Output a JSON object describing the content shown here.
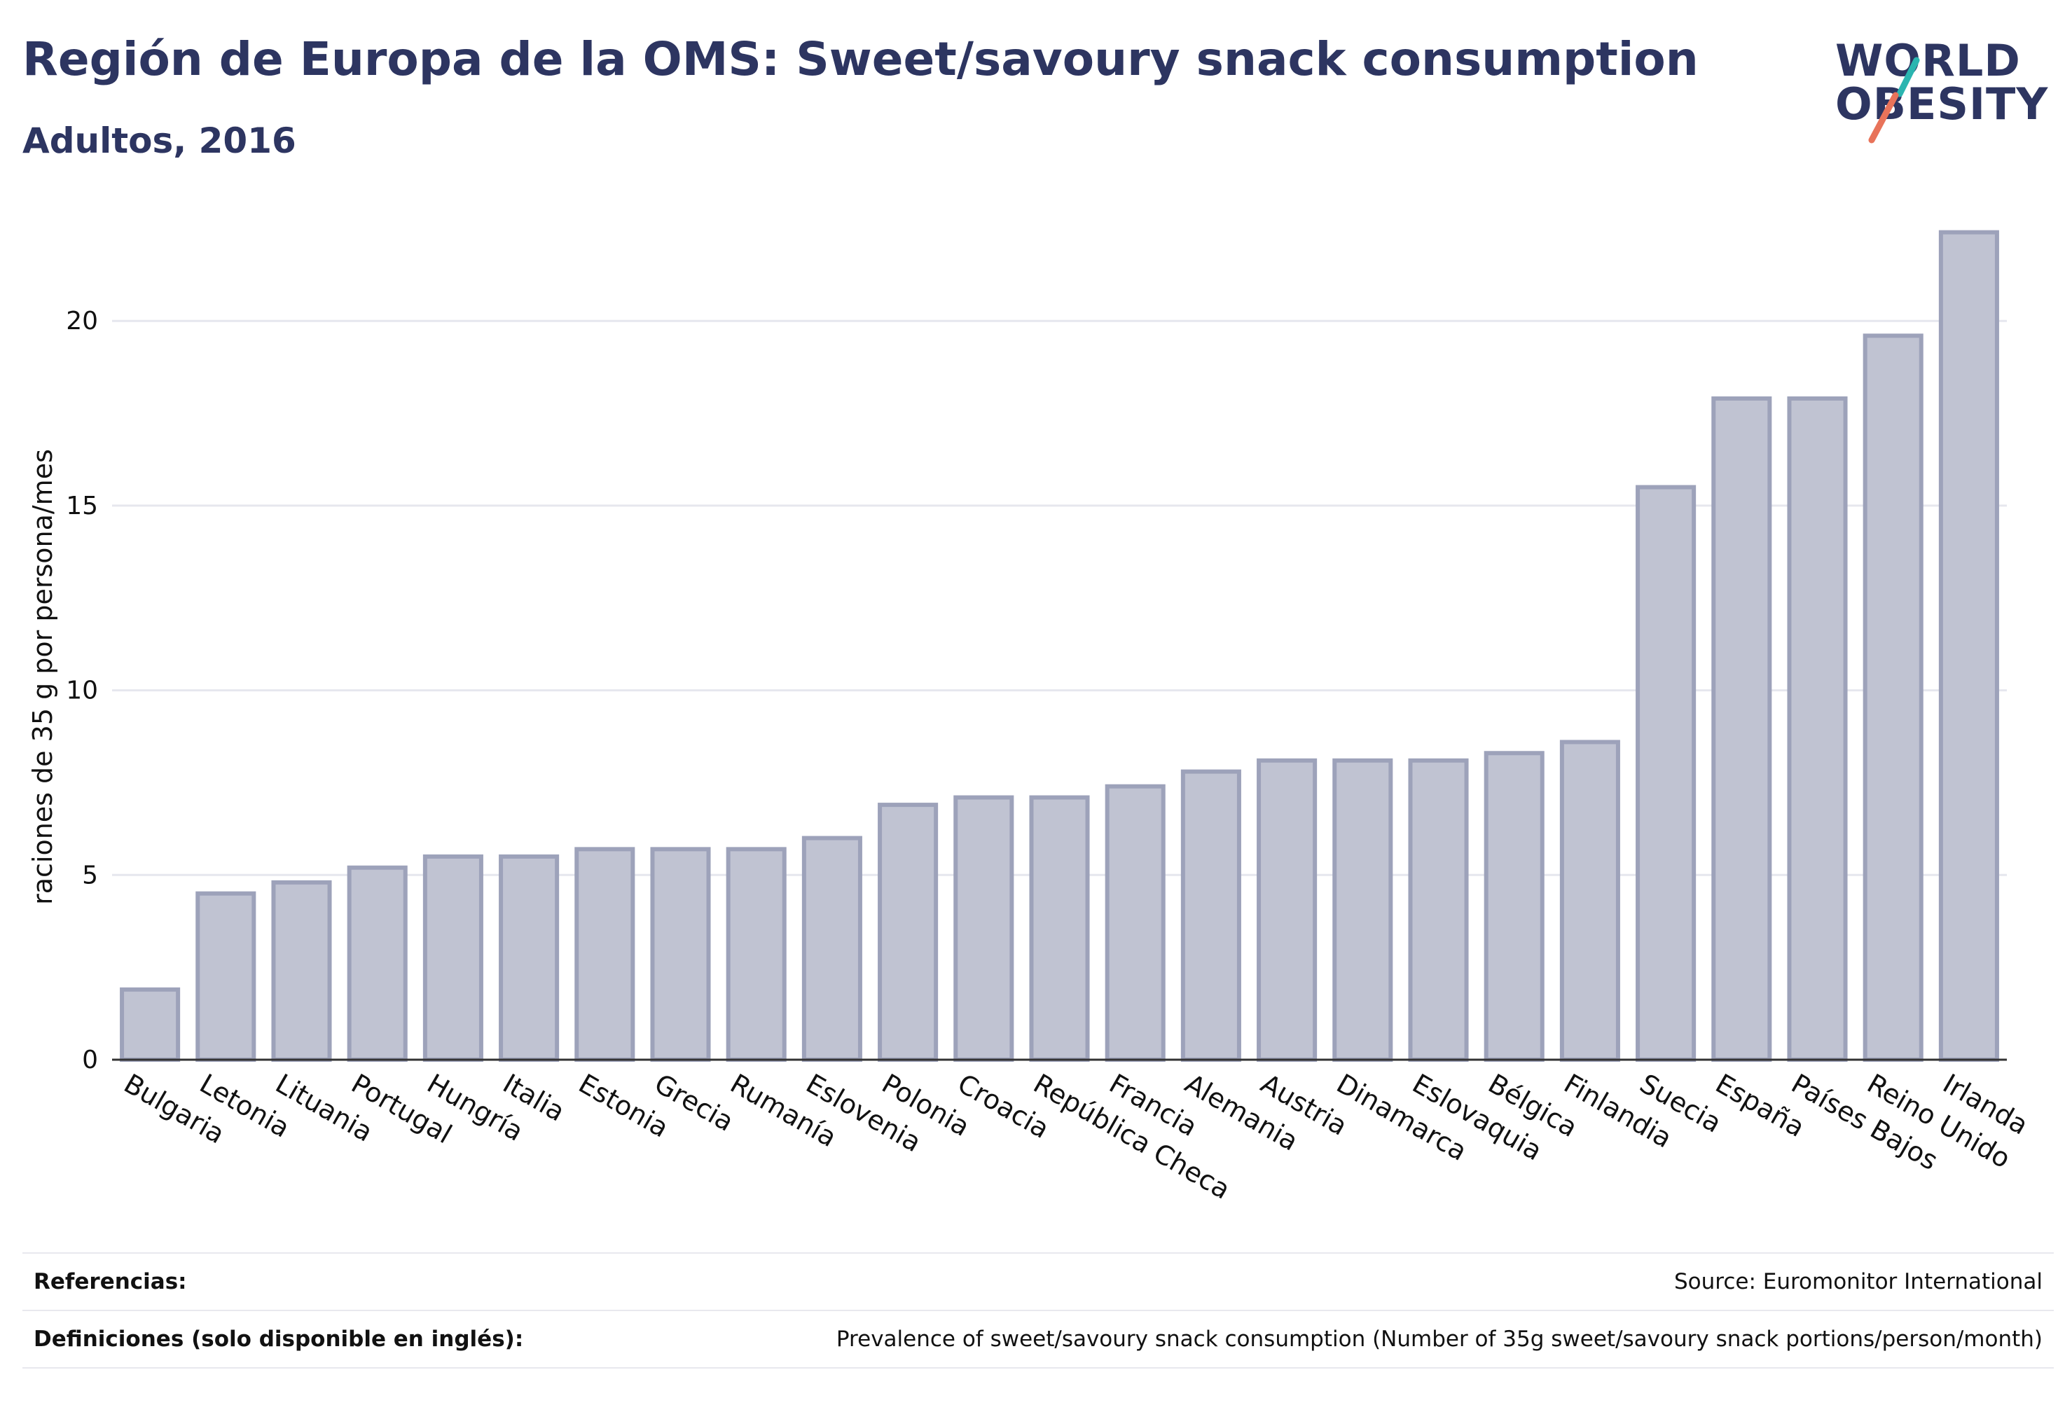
{
  "header": {
    "title": "Región de Europa de la OMS: Sweet/savoury snack consumption",
    "subtitle": "Adultos, 2016"
  },
  "logo": {
    "line1": "WORLD",
    "line2": "OBESITY",
    "colors": {
      "text": "#2d3561",
      "slash_top": "#2bb5b0",
      "slash_bottom": "#e8735a"
    }
  },
  "chart_data": {
    "type": "bar",
    "ylabel": "raciones de 35 g por persona/mes",
    "ylim": [
      0,
      23
    ],
    "yticks": [
      0,
      5,
      10,
      15,
      20
    ],
    "grid": true,
    "categories": [
      "Bulgaria",
      "Letonia",
      "Lituania",
      "Portugal",
      "Hungría",
      "Italia",
      "Estonia",
      "Grecia",
      "Rumanía",
      "Eslovenia",
      "Polonia",
      "Croacia",
      "República Checa",
      "Francia",
      "Alemania",
      "Austria",
      "Dinamarca",
      "Eslovaquia",
      "Bélgica",
      "Finlandia",
      "Suecia",
      "España",
      "Países Bajos",
      "Reino Unido",
      "Irlanda"
    ],
    "values": [
      1.9,
      4.5,
      4.8,
      5.2,
      5.5,
      5.5,
      5.7,
      5.7,
      5.7,
      6.0,
      6.9,
      7.1,
      7.1,
      7.4,
      7.8,
      8.1,
      8.1,
      8.1,
      8.3,
      8.6,
      15.5,
      17.9,
      17.9,
      19.6,
      22.4
    ],
    "colors": {
      "bar_fill": "#c0c3d2",
      "bar_stroke": "#9da2ba",
      "axis": "#333333",
      "grid": "#e6e7ee"
    }
  },
  "footer": {
    "references_label": "Referencias:",
    "references_value": "Source: Euromonitor International",
    "definitions_label": "Definiciones (solo disponible en inglés):",
    "definitions_value": "Prevalence of sweet/savoury snack consumption (Number of 35g sweet/savoury snack portions/person/month)"
  }
}
